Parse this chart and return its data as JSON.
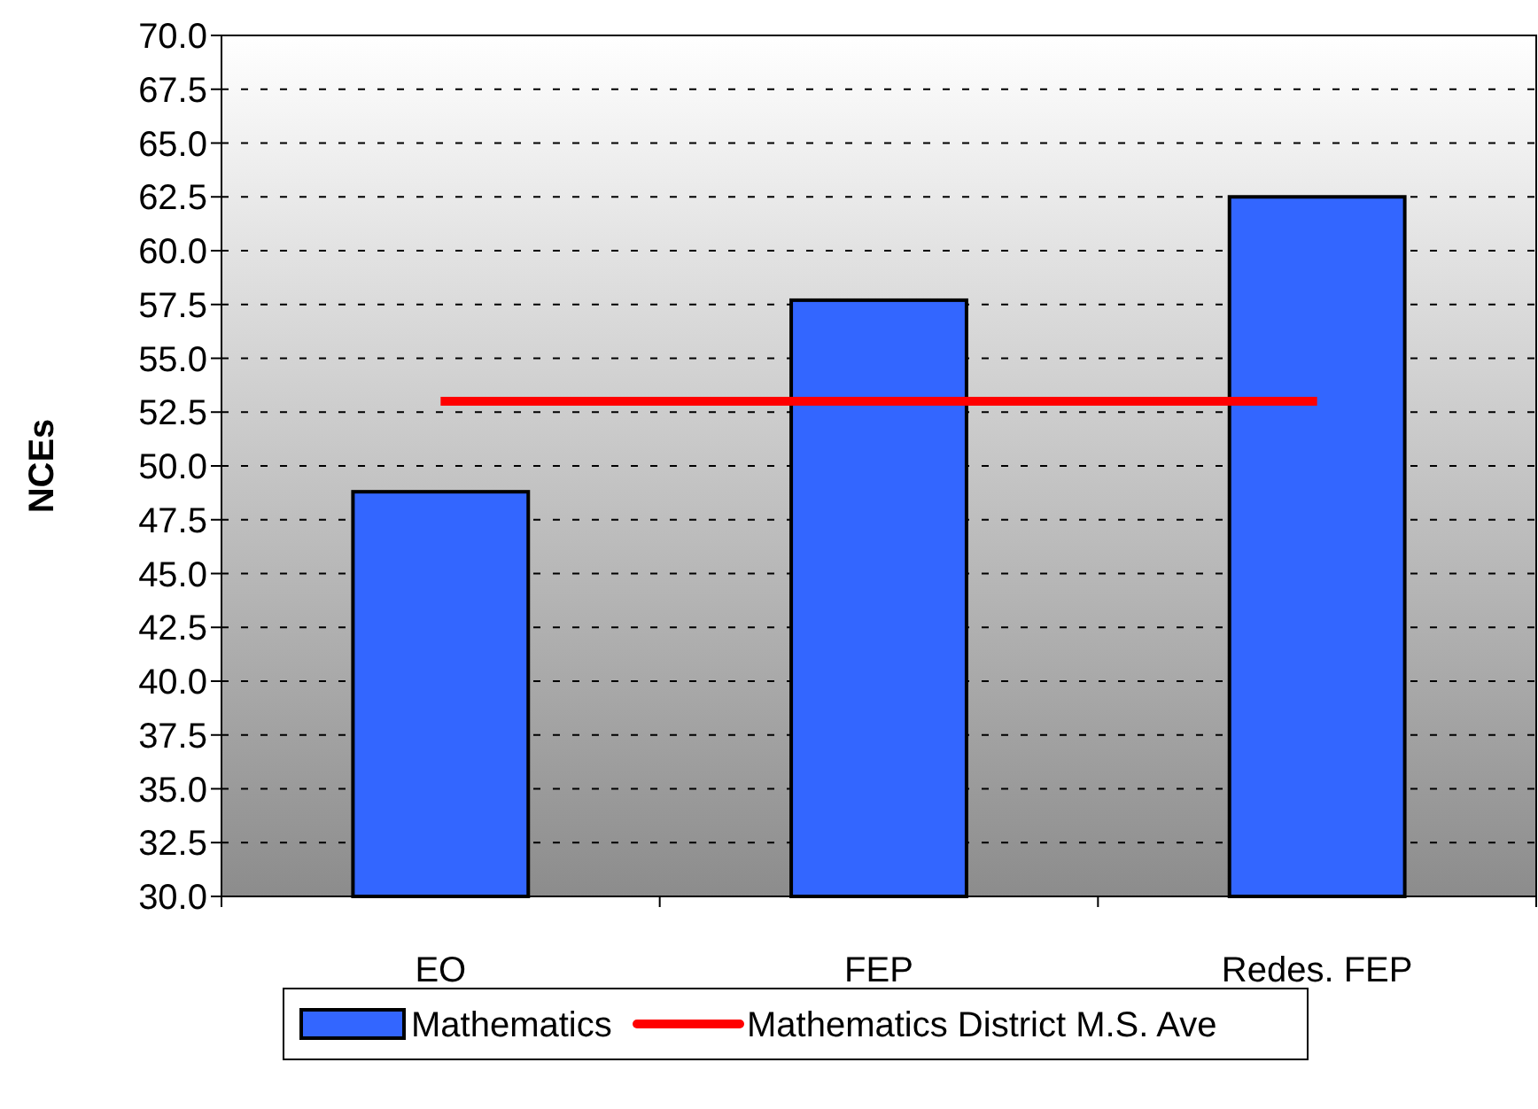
{
  "chart_data": {
    "type": "bar",
    "ylabel": "NCEs",
    "categories": [
      "EO",
      "FEP",
      "Redes. FEP"
    ],
    "series": [
      {
        "name": "Mathematics",
        "color": "#3366ff",
        "values": [
          48.8,
          57.7,
          62.5
        ]
      },
      {
        "name": "Mathematics District M.S. Ave",
        "type": "line",
        "color": "#ff0000",
        "values": [
          53.0,
          53.0,
          53.0
        ]
      }
    ],
    "ylim": [
      30,
      70
    ],
    "yticks": [
      {
        "value": 30,
        "label": "30.0"
      },
      {
        "value": 32.5,
        "label": "32.5"
      },
      {
        "value": 35,
        "label": "35.0"
      },
      {
        "value": 37.5,
        "label": "37.5"
      },
      {
        "value": 40,
        "label": "40.0"
      },
      {
        "value": 42.5,
        "label": "42.5"
      },
      {
        "value": 45,
        "label": "45.0"
      },
      {
        "value": 47.5,
        "label": "47.5"
      },
      {
        "value": 50,
        "label": "50.0"
      },
      {
        "value": 52.5,
        "label": "52.5"
      },
      {
        "value": 55,
        "label": "55.0"
      },
      {
        "value": 57.5,
        "label": "57.5"
      },
      {
        "value": 60,
        "label": "60.0"
      },
      {
        "value": 62.5,
        "label": "62.5"
      },
      {
        "value": 65,
        "label": "65.0"
      },
      {
        "value": 67.5,
        "label": "67.5"
      },
      {
        "value": 70,
        "label": "70.0"
      }
    ],
    "grid": "y",
    "legend": "bottom",
    "marker": "none",
    "line_style": "solid"
  }
}
